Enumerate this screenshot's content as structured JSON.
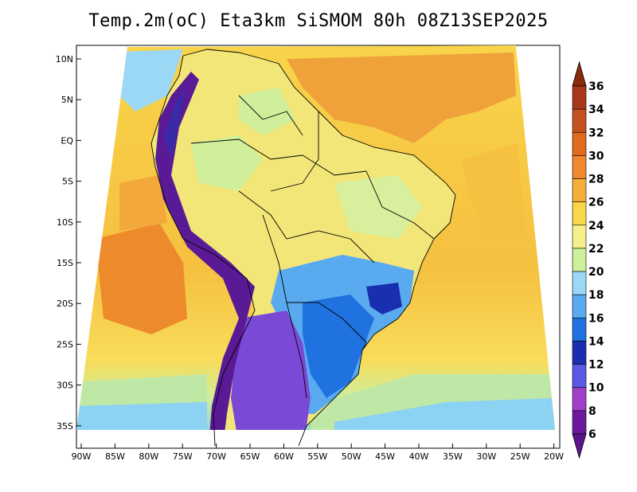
{
  "title": "Temp.2m(oC) Eta3km SiSMOM 80h 08Z13SEP2025",
  "lat_labels": [
    "10N",
    "5N",
    "EQ",
    "5S",
    "10S",
    "15S",
    "20S",
    "25S",
    "30S",
    "35S"
  ],
  "lon_labels": [
    "90W",
    "85W",
    "80W",
    "75W",
    "70W",
    "65W",
    "60W",
    "55W",
    "50W",
    "45W",
    "40W",
    "35W",
    "30W",
    "25W",
    "20W"
  ],
  "colorbar": {
    "levels": [
      "36",
      "34",
      "32",
      "30",
      "28",
      "26",
      "24",
      "22",
      "20",
      "18",
      "16",
      "14",
      "12",
      "10",
      "8",
      "6"
    ],
    "colors": [
      "#8b2a0c",
      "#a8381a",
      "#c4521e",
      "#e06a1e",
      "#f08830",
      "#f6ae3a",
      "#f8d848",
      "#f6f08c",
      "#cff09a",
      "#9ad8f6",
      "#5aaaf0",
      "#1f72e0",
      "#1a2fb0",
      "#5a5ae6",
      "#a040c8",
      "#6a1a9a",
      "#5a168a"
    ]
  },
  "colors": {
    "ocean_warm": "#f0a23a",
    "ocean_mid": "#f8c84a",
    "ocean_cool": "#b8e6a6",
    "land_warm": "#f2e678",
    "land_cool": "#3a7ad8",
    "andes_cold": "#5a2a9a",
    "background": "#ffffff"
  }
}
